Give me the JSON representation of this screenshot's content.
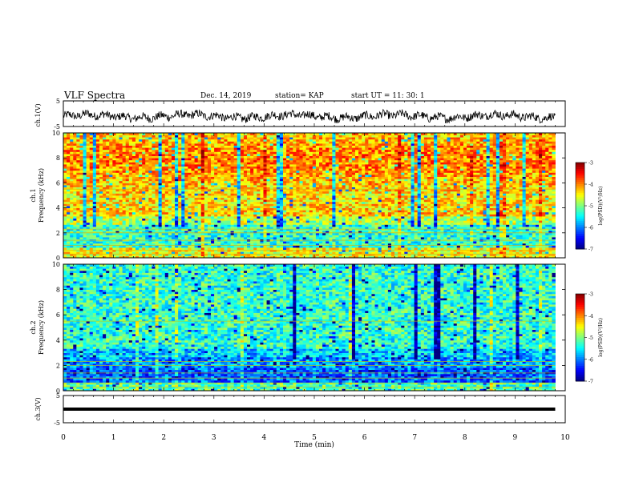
{
  "header": {
    "title": "VLF Spectra",
    "date": "Dec. 14, 2019",
    "station": "station= KAP",
    "start": "start  UT =   11: 30: 1"
  },
  "chart_data": [
    {
      "type": "line",
      "name_label": "ch.1(V)",
      "xlabel": "Time  (min)",
      "ylabel": "ch.1(V)",
      "xlim": [
        0,
        10
      ],
      "ylim": [
        -5,
        5
      ],
      "yticks": [
        -5,
        5
      ],
      "note": "noisy waveform fluctuating around -1 V"
    },
    {
      "type": "heatmap",
      "ylabel": "ch.1\nFrequency (kHz)",
      "ylabel_line1": "ch.1",
      "ylabel_line2": "Frequency  (kHz)",
      "xlim": [
        0,
        10
      ],
      "ylim": [
        0,
        10
      ],
      "yticks": [
        0,
        2,
        4,
        6,
        8,
        10
      ],
      "colorbar": {
        "label": "log(PSD)(V²/Hz)",
        "range": [
          -7,
          -3
        ],
        "ticks": [
          -3,
          -4,
          -5,
          -6,
          -7
        ]
      },
      "data_end_min": 9.8
    },
    {
      "type": "heatmap",
      "ylabel_line1": "ch.2",
      "ylabel_line2": "Frequency  (kHz)",
      "xlim": [
        0,
        10
      ],
      "ylim": [
        0,
        10
      ],
      "yticks": [
        0,
        2,
        4,
        6,
        8,
        10
      ],
      "colorbar": {
        "label": "log(PSD)(V²/Hz)",
        "range": [
          -7,
          -3
        ],
        "ticks": [
          -3,
          -4,
          -5,
          -6,
          -7
        ]
      },
      "data_end_min": 9.8
    },
    {
      "type": "line",
      "ylabel": "ch.3(V)",
      "xlim": [
        0,
        10
      ],
      "ylim": [
        -5,
        5
      ],
      "yticks": [
        -5,
        5
      ],
      "constant_value": 0
    }
  ],
  "xaxis": {
    "label": "Time  (min)",
    "ticks": [
      0,
      1,
      2,
      3,
      4,
      5,
      6,
      7,
      8,
      9,
      10
    ]
  }
}
